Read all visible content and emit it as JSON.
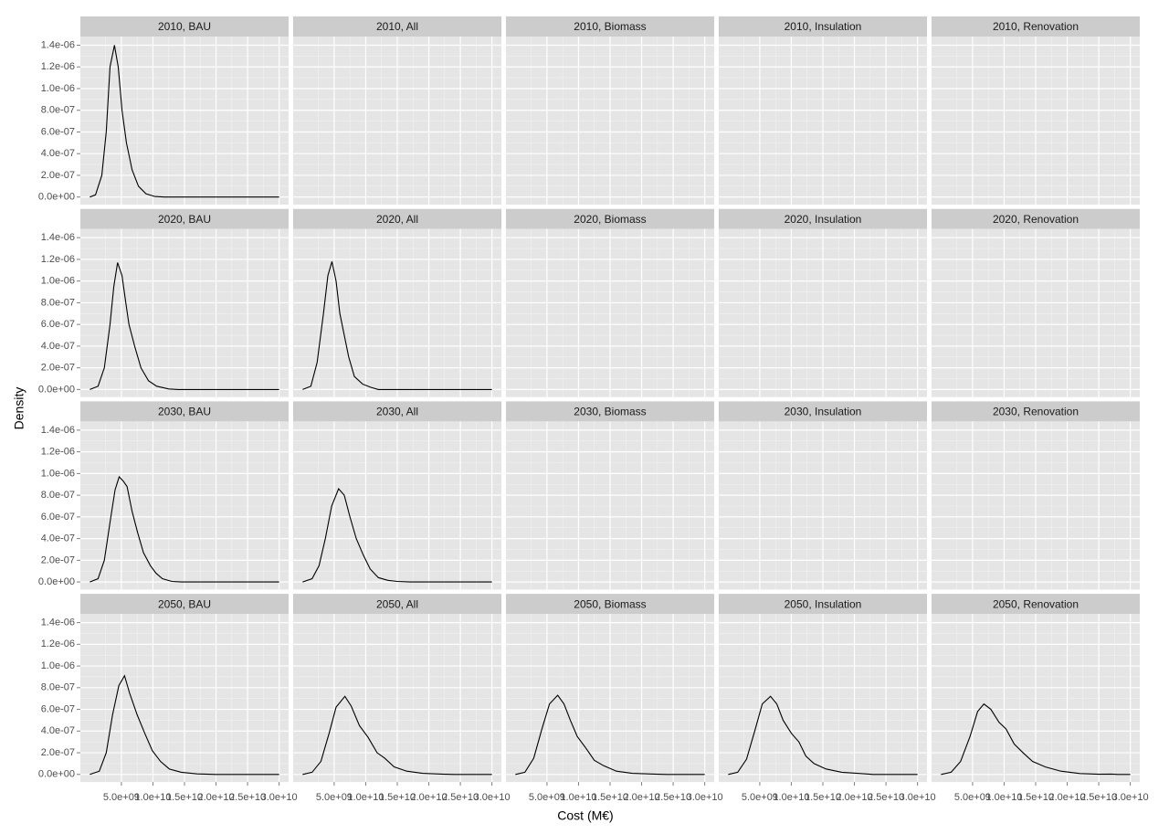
{
  "chart_data": {
    "type": "line",
    "xlabel": "Cost (M€)",
    "ylabel": "Density",
    "xlim": [
      -1500000000.0,
      31500000000.0
    ],
    "ylim": [
      -7e-08,
      1.48e-06
    ],
    "xticks": [
      {
        "value": 5000000000.0,
        "label": "5.0e+09"
      },
      {
        "value": 10000000000.0,
        "label": "1.0e+10"
      },
      {
        "value": 15000000000.0,
        "label": "1.5e+10"
      },
      {
        "value": 20000000000.0,
        "label": "2.0e+10"
      },
      {
        "value": 25000000000.0,
        "label": "2.5e+10"
      },
      {
        "value": 30000000000.0,
        "label": "3.0e+10"
      }
    ],
    "yticks": [
      {
        "value": 0,
        "label": "0.0e+00"
      },
      {
        "value": 2e-07,
        "label": "2.0e-07"
      },
      {
        "value": 4e-07,
        "label": "4.0e-07"
      },
      {
        "value": 6e-07,
        "label": "6.0e-07"
      },
      {
        "value": 8e-07,
        "label": "8.0e-07"
      },
      {
        "value": 1e-06,
        "label": "1.0e-06"
      },
      {
        "value": 1.2e-06,
        "label": "1.2e-06"
      },
      {
        "value": 1.4e-06,
        "label": "1.4e-06"
      }
    ],
    "grid": true,
    "color": "#000000",
    "panels": [
      {
        "title": "2010, BAU",
        "x": [
          0,
          900000000.0,
          1900000000.0,
          2600000000.0,
          3200000000.0,
          3900000000.0,
          4500000000.0,
          5100000000.0,
          5800000000.0,
          6700000000.0,
          7700000000.0,
          8900000000.0,
          10300000000.0,
          11800000000.0,
          30000000000.0
        ],
        "values": [
          0,
          2e-08,
          2e-07,
          6e-07,
          1.2e-06,
          1.4e-06,
          1.2e-06,
          8e-07,
          5e-07,
          2.5e-07,
          1e-07,
          3e-08,
          5e-09,
          0,
          0
        ]
      },
      {
        "title": "2010, All"
      },
      {
        "title": "2010, Biomass"
      },
      {
        "title": "2010, Insulation"
      },
      {
        "title": "2010, Renovation"
      },
      {
        "title": "2020, BAU",
        "x": [
          0,
          1300000000.0,
          2300000000.0,
          3200000000.0,
          3800000000.0,
          4400000000.0,
          5100000000.0,
          5700000000.0,
          6200000000.0,
          7100000000.0,
          8100000000.0,
          9300000000.0,
          10600000000.0,
          12500000000.0,
          14000000000.0,
          30000000000.0
        ],
        "values": [
          0,
          3e-08,
          2e-07,
          6e-07,
          9.5e-07,
          1.17e-06,
          1.05e-06,
          8e-07,
          6e-07,
          4e-07,
          2e-07,
          8e-08,
          3e-08,
          5e-09,
          0,
          0
        ]
      },
      {
        "title": "2020, All",
        "x": [
          0,
          1300000000.0,
          2300000000.0,
          3300000000.0,
          4000000000.0,
          4650000000.0,
          5300000000.0,
          5900000000.0,
          6600000000.0,
          7300000000.0,
          8200000000.0,
          9500000000.0,
          10800000000.0,
          12000000000.0,
          30000000000.0
        ],
        "values": [
          0,
          3e-08,
          2.5e-07,
          7e-07,
          1.05e-06,
          1.18e-06,
          1e-06,
          7e-07,
          5e-07,
          3e-07,
          1.2e-07,
          5e-08,
          2e-08,
          0,
          0
        ]
      },
      {
        "title": "2020, Biomass"
      },
      {
        "title": "2020, Insulation"
      },
      {
        "title": "2020, Renovation"
      },
      {
        "title": "2030, BAU",
        "x": [
          0,
          1300000000.0,
          2300000000.0,
          3200000000.0,
          4000000000.0,
          4650000000.0,
          5300000000.0,
          5900000000.0,
          6700000000.0,
          7600000000.0,
          8500000000.0,
          9600000000.0,
          10500000000.0,
          11500000000.0,
          13000000000.0,
          14500000000.0,
          30000000000.0
        ],
        "values": [
          0,
          3e-08,
          2e-07,
          5.5e-07,
          8.5e-07,
          9.7e-07,
          9.3e-07,
          8.8e-07,
          6.5e-07,
          4.5e-07,
          2.7e-07,
          1.5e-07,
          8e-08,
          3e-08,
          5e-09,
          0,
          0
        ]
      },
      {
        "title": "2030, All",
        "x": [
          0,
          1500000000.0,
          2600000000.0,
          3600000000.0,
          4600000000.0,
          5700000000.0,
          6600000000.0,
          7500000000.0,
          8500000000.0,
          9600000000.0,
          10700000000.0,
          12000000000.0,
          13500000000.0,
          15000000000.0,
          17000000000.0,
          30000000000.0
        ],
        "values": [
          0,
          3e-08,
          1.5e-07,
          4e-07,
          7e-07,
          8.6e-07,
          8e-07,
          6e-07,
          4e-07,
          2.5e-07,
          1.2e-07,
          4e-08,
          1.5e-08,
          5e-09,
          0,
          0
        ]
      },
      {
        "title": "2030, Biomass"
      },
      {
        "title": "2030, Insulation"
      },
      {
        "title": "2030, Renovation"
      },
      {
        "title": "2050, BAU",
        "x": [
          0,
          1500000000.0,
          2600000000.0,
          3600000000.0,
          4600000000.0,
          5500000000.0,
          6300000000.0,
          7500000000.0,
          8700000000.0,
          9900000000.0,
          11200000000.0,
          12600000000.0,
          14500000000.0,
          17000000000.0,
          20000000000.0,
          30000000000.0
        ],
        "values": [
          0,
          3e-08,
          2e-07,
          5.5e-07,
          8.2e-07,
          9.1e-07,
          7.5e-07,
          5.5e-07,
          3.8e-07,
          2.2e-07,
          1.2e-07,
          5e-08,
          2e-08,
          5e-09,
          0,
          0
        ]
      },
      {
        "title": "2050, All",
        "x": [
          0,
          1500000000.0,
          2900000000.0,
          4200000000.0,
          5300000000.0,
          6700000000.0,
          7700000000.0,
          9000000000.0,
          10400000000.0,
          11800000000.0,
          13000000000.0,
          14500000000.0,
          16500000000.0,
          19000000000.0,
          22000000000.0,
          24000000000.0,
          30000000000.0
        ],
        "values": [
          0,
          2e-08,
          1.2e-07,
          3.8e-07,
          6.2e-07,
          7.2e-07,
          6.3e-07,
          4.5e-07,
          3.4e-07,
          2e-07,
          1.5e-07,
          7e-08,
          3e-08,
          1e-08,
          3e-09,
          0,
          0
        ]
      },
      {
        "title": "2050, Biomass",
        "x": [
          0,
          1500000000.0,
          2900000000.0,
          4200000000.0,
          5400000000.0,
          6700000000.0,
          7700000000.0,
          8700000000.0,
          9800000000.0,
          11200000000.0,
          12500000000.0,
          14000000000.0,
          16000000000.0,
          18500000000.0,
          22000000000.0,
          24000000000.0,
          30000000000.0
        ],
        "values": [
          0,
          2e-08,
          1.5e-07,
          4.2e-07,
          6.5e-07,
          7.3e-07,
          6.5e-07,
          5e-07,
          3.5e-07,
          2.4e-07,
          1.3e-07,
          8e-08,
          3e-08,
          1e-08,
          3e-09,
          0,
          0
        ]
      },
      {
        "title": "2050, Insulation",
        "x": [
          0,
          1500000000.0,
          2900000000.0,
          4200000000.0,
          5400000000.0,
          6700000000.0,
          7700000000.0,
          8700000000.0,
          10000000000.0,
          11200000000.0,
          12300000000.0,
          13600000000.0,
          15500000000.0,
          18000000000.0,
          21000000000.0,
          23000000000.0,
          30000000000.0
        ],
        "values": [
          0,
          2e-08,
          1.4e-07,
          4e-07,
          6.5e-07,
          7.2e-07,
          6.5e-07,
          5e-07,
          3.8e-07,
          3e-07,
          1.7e-07,
          1e-07,
          5e-08,
          2e-08,
          8e-09,
          0,
          0
        ]
      },
      {
        "title": "2050, Renovation",
        "x": [
          0,
          1600000000.0,
          3100000000.0,
          4600000000.0,
          5800000000.0,
          6800000000.0,
          7900000000.0,
          9200000000.0,
          10300000000.0,
          11600000000.0,
          13000000000.0,
          14500000000.0,
          16500000000.0,
          19000000000.0,
          22000000000.0,
          25000000000.0,
          27000000000.0,
          28000000000.0,
          30000000000.0
        ],
        "values": [
          0,
          2e-08,
          1.2e-07,
          3.5e-07,
          5.8e-07,
          6.5e-07,
          6e-07,
          4.8e-07,
          4.2e-07,
          2.8e-07,
          2e-07,
          1.2e-07,
          7e-08,
          3e-08,
          8e-09,
          2e-09,
          3e-09,
          0,
          0
        ]
      }
    ]
  }
}
